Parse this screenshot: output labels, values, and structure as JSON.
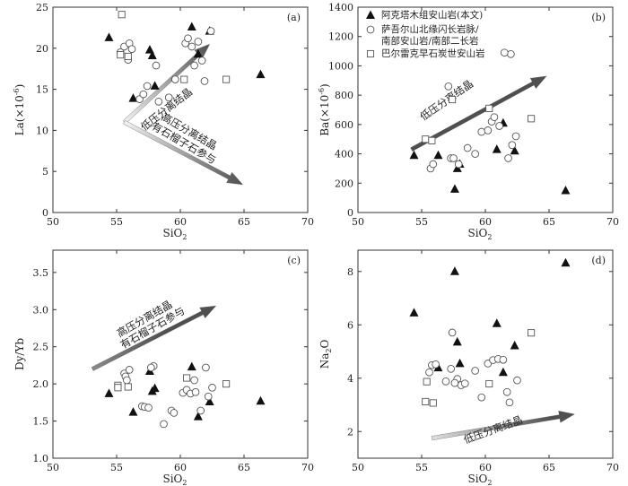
{
  "chart_data": [
    {
      "type": "scatter",
      "panel_label": "(a)",
      "xlabel": "SiO",
      "xlabel_sub": "2",
      "ylabel": "La(×10",
      "ylabel_sup": "-6",
      "ylabel_close": ")",
      "xlim": [
        50,
        70
      ],
      "ylim": [
        0,
        25
      ],
      "xticks": [
        50,
        55,
        60,
        65,
        70
      ],
      "yticks": [
        0,
        5,
        10,
        15,
        20,
        25
      ],
      "series": [
        {
          "name": "阿克塔木组安山岩(本文)",
          "marker": "triangle",
          "points": [
            [
              54.4,
              21.3
            ],
            [
              56.3,
              13.9
            ],
            [
              57.6,
              19.8
            ],
            [
              57.8,
              19.1
            ],
            [
              58.0,
              15.4
            ],
            [
              60.9,
              22.6
            ],
            [
              61.4,
              19.3
            ],
            [
              62.3,
              22.1
            ],
            [
              66.3,
              16.8
            ]
          ]
        },
        {
          "name": "萨吾尔山北缘闪长岩脉/南部安山岩/南部二长岩",
          "marker": "circle",
          "points": [
            [
              55.3,
              19.5
            ],
            [
              55.6,
              20.2
            ],
            [
              55.9,
              18.6
            ],
            [
              56.0,
              20.6
            ],
            [
              56.2,
              19.9
            ],
            [
              56.8,
              13.8
            ],
            [
              57.1,
              14.4
            ],
            [
              57.4,
              15.4
            ],
            [
              58.3,
              13.5
            ],
            [
              59.1,
              14.0
            ],
            [
              59.6,
              16.2
            ],
            [
              60.4,
              20.6
            ],
            [
              60.6,
              21.2
            ],
            [
              60.9,
              20.2
            ],
            [
              61.1,
              17.9
            ],
            [
              61.4,
              20.8
            ],
            [
              61.7,
              18.5
            ],
            [
              61.9,
              16.0
            ],
            [
              62.4,
              22.1
            ],
            [
              58.1,
              17.9
            ]
          ]
        },
        {
          "name": "巴尔雷克早石炭世安山岩",
          "marker": "square",
          "points": [
            [
              55.4,
              24.1
            ],
            [
              55.3,
              19.2
            ],
            [
              55.9,
              19.0
            ],
            [
              60.3,
              16.2
            ],
            [
              63.6,
              16.2
            ]
          ]
        }
      ],
      "annotations": [
        {
          "lines": [
            "低压分离结晶"
          ],
          "arrow": "up-right"
        },
        {
          "lines": [
            "高压分离结晶",
            "有石榴子石参与"
          ],
          "arrow": "down-right"
        }
      ]
    },
    {
      "type": "scatter",
      "panel_label": "(b)",
      "xlabel": "SiO",
      "xlabel_sub": "2",
      "ylabel": "Ba(×10",
      "ylabel_sup": "-6",
      "ylabel_close": ")",
      "xlim": [
        50,
        70
      ],
      "ylim": [
        0,
        1400
      ],
      "xticks": [
        50,
        55,
        60,
        65,
        70
      ],
      "yticks": [
        0,
        200,
        400,
        600,
        800,
        1000,
        1200,
        1400
      ],
      "series": [
        {
          "name": "阿克塔木组安山岩(本文)",
          "marker": "triangle",
          "points": [
            [
              54.4,
              390
            ],
            [
              56.3,
              390
            ],
            [
              57.6,
              160
            ],
            [
              57.8,
              300
            ],
            [
              58.0,
              330
            ],
            [
              60.9,
              430
            ],
            [
              61.4,
              610
            ],
            [
              62.3,
              420
            ],
            [
              66.3,
              150
            ]
          ]
        },
        {
          "name": "萨吾尔山北缘闪长岩脉/南部安山岩/南部二长岩",
          "marker": "circle",
          "points": [
            [
              55.7,
              300
            ],
            [
              55.9,
              330
            ],
            [
              57.1,
              860
            ],
            [
              57.3,
              370
            ],
            [
              57.5,
              370
            ],
            [
              57.9,
              330
            ],
            [
              58.6,
              440
            ],
            [
              59.2,
              400
            ],
            [
              59.7,
              550
            ],
            [
              60.2,
              560
            ],
            [
              60.5,
              620
            ],
            [
              60.7,
              650
            ],
            [
              61.1,
              590
            ],
            [
              61.8,
              370
            ],
            [
              62.0,
              1080
            ],
            [
              62.4,
              520
            ],
            [
              61.5,
              1090
            ],
            [
              62.1,
              460
            ]
          ]
        },
        {
          "name": "巴尔雷克早石炭世安山岩",
          "marker": "square",
          "points": [
            [
              55.3,
              500
            ],
            [
              55.8,
              490
            ],
            [
              57.4,
              770
            ],
            [
              60.3,
              710
            ],
            [
              63.6,
              640
            ]
          ]
        }
      ],
      "legend": {
        "position": "top-left",
        "entries": [
          {
            "marker": "triangle",
            "lines": [
              "阿克塔木组安山岩(本文)"
            ]
          },
          {
            "marker": "circle",
            "lines": [
              "萨吾尔山北缘闪长岩脉/",
              "南部安山岩/南部二长岩"
            ]
          },
          {
            "marker": "square",
            "lines": [
              "巴尔雷克早石炭世安山岩"
            ]
          }
        ]
      },
      "annotations": [
        {
          "lines": [
            "低压分离结晶"
          ],
          "arrow": "up-right"
        }
      ]
    },
    {
      "type": "scatter",
      "panel_label": "(c)",
      "xlabel": "SiO",
      "xlabel_sub": "2",
      "ylabel": "Dy/Yb",
      "xlim": [
        50,
        70
      ],
      "ylim": [
        1.0,
        3.8
      ],
      "xticks": [
        50,
        55,
        60,
        65,
        70
      ],
      "yticks": [
        1.0,
        1.5,
        2.0,
        2.5,
        3.0,
        3.5
      ],
      "series": [
        {
          "name": "阿克塔木组安山岩(本文)",
          "marker": "triangle",
          "points": [
            [
              54.4,
              1.87
            ],
            [
              56.3,
              1.62
            ],
            [
              57.6,
              2.17
            ],
            [
              57.8,
              1.9
            ],
            [
              58.0,
              1.94
            ],
            [
              60.9,
              2.23
            ],
            [
              61.4,
              1.56
            ],
            [
              62.3,
              1.76
            ],
            [
              66.3,
              1.77
            ]
          ]
        },
        {
          "name": "萨吾尔山北缘闪长岩脉/南部安山岩/南部二长岩",
          "marker": "circle",
          "points": [
            [
              55.6,
              2.14
            ],
            [
              55.7,
              2.1
            ],
            [
              55.8,
              2.05
            ],
            [
              56.0,
              2.19
            ],
            [
              57.0,
              1.7
            ],
            [
              57.2,
              1.69
            ],
            [
              57.5,
              1.68
            ],
            [
              57.9,
              2.24
            ],
            [
              58.7,
              1.46
            ],
            [
              59.3,
              1.64
            ],
            [
              59.5,
              1.61
            ],
            [
              60.2,
              1.88
            ],
            [
              60.5,
              1.92
            ],
            [
              60.8,
              1.87
            ],
            [
              61.2,
              1.89
            ],
            [
              61.6,
              1.64
            ],
            [
              62.0,
              2.22
            ],
            [
              62.5,
              1.95
            ],
            [
              62.2,
              1.83
            ],
            [
              61.1,
              2.05
            ],
            [
              57.7,
              2.22
            ]
          ]
        },
        {
          "name": "巴尔雷克早石炭世安山岩",
          "marker": "square",
          "points": [
            [
              55.1,
              1.98
            ],
            [
              55.1,
              1.95
            ],
            [
              55.9,
              1.96
            ],
            [
              60.5,
              2.08
            ],
            [
              63.6,
              2.0
            ]
          ]
        }
      ],
      "annotations": [
        {
          "lines": [
            "高压分离结晶",
            "有石榴子石参与"
          ],
          "arrow": "up-right"
        }
      ]
    },
    {
      "type": "scatter",
      "panel_label": "(d)",
      "xlabel": "SiO",
      "xlabel_sub": "2",
      "ylabel": "Na",
      "ylabel_sub": "2",
      "ylabel_close": "O",
      "xlim": [
        50,
        70
      ],
      "ylim": [
        1.0,
        8.8
      ],
      "xticks": [
        50,
        55,
        60,
        65,
        70
      ],
      "yticks": [
        2,
        4,
        6,
        8
      ],
      "series": [
        {
          "name": "阿克塔木组安山岩(本文)",
          "marker": "triangle",
          "points": [
            [
              54.4,
              6.45
            ],
            [
              56.3,
              4.39
            ],
            [
              57.6,
              8.0
            ],
            [
              57.8,
              5.36
            ],
            [
              58.0,
              4.55
            ],
            [
              60.9,
              6.05
            ],
            [
              61.4,
              4.22
            ],
            [
              62.3,
              5.22
            ],
            [
              66.3,
              8.32
            ]
          ]
        },
        {
          "name": "萨吾尔山北缘闪长岩脉/南部安山岩/南部二长岩",
          "marker": "circle",
          "points": [
            [
              55.6,
              4.22
            ],
            [
              55.8,
              4.49
            ],
            [
              56.1,
              4.52
            ],
            [
              56.9,
              3.88
            ],
            [
              57.3,
              4.35
            ],
            [
              57.4,
              5.71
            ],
            [
              57.8,
              3.97
            ],
            [
              58.1,
              3.74
            ],
            [
              58.4,
              3.8
            ],
            [
              59.2,
              4.28
            ],
            [
              59.7,
              3.28
            ],
            [
              60.2,
              4.55
            ],
            [
              60.6,
              4.68
            ],
            [
              61.0,
              4.72
            ],
            [
              61.4,
              4.69
            ],
            [
              61.7,
              3.48
            ],
            [
              61.9,
              3.09
            ],
            [
              62.5,
              3.92
            ],
            [
              57.6,
              3.82
            ]
          ]
        },
        {
          "name": "巴尔雷克早石炭世安山岩",
          "marker": "square",
          "points": [
            [
              55.3,
              3.12
            ],
            [
              55.4,
              3.87
            ],
            [
              55.9,
              3.07
            ],
            [
              60.3,
              3.79
            ],
            [
              63.6,
              5.7
            ]
          ]
        }
      ],
      "annotations": [
        {
          "lines": [
            "低压分离结晶"
          ],
          "arrow": "up-right"
        }
      ]
    }
  ]
}
